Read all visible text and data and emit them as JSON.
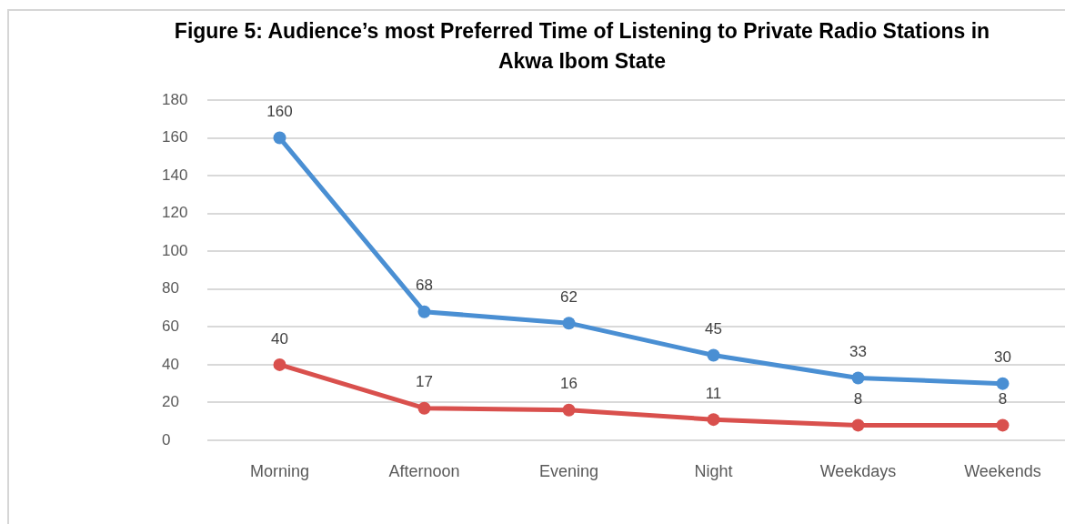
{
  "chart_data": {
    "type": "line",
    "title": "Figure 5: Audience’s most Preferred Time of Listening to Private Radio Stations in Akwa Ibom State",
    "categories": [
      "Morning",
      "Afternoon",
      "Evening",
      "Night",
      "Weekdays",
      "Weekends"
    ],
    "series": [
      {
        "color": "#4a8fd3",
        "values": [
          160,
          68,
          62,
          45,
          33,
          30
        ]
      },
      {
        "color": "#d9504d",
        "values": [
          40,
          17,
          16,
          11,
          8,
          8
        ]
      }
    ],
    "ylim": [
      0,
      180
    ],
    "yticks": [
      0,
      20,
      40,
      60,
      80,
      100,
      120,
      140,
      160,
      180
    ],
    "grid": "y",
    "data_labels": true,
    "marker": "circle",
    "line_style": "solid"
  }
}
